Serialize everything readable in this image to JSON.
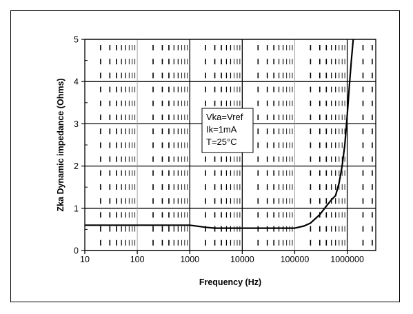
{
  "chart_data": {
    "type": "line",
    "xscale": "log",
    "xlabel": "Frequency (Hz)",
    "ylabel": "Zka Dynamic impedance (Ohms)",
    "xlim": [
      10,
      3500000
    ],
    "ylim": [
      0,
      5
    ],
    "xticks": [
      10,
      100,
      1000,
      10000,
      100000,
      1000000
    ],
    "xtick_labels": [
      "10",
      "100",
      "1000",
      "10000",
      "100000",
      "1000000"
    ],
    "yticks": [
      0,
      1,
      2,
      3,
      4,
      5
    ],
    "ytick_labels": [
      "0",
      "1",
      "2",
      "3",
      "4",
      "5"
    ],
    "grid": true,
    "annotation": [
      "Vka=Vref",
      "Ik=1mA",
      "T=25°C"
    ],
    "series": [
      {
        "x": [
          10,
          100,
          1000,
          2000,
          3000,
          10000,
          50000,
          100000,
          150000,
          200000,
          300000,
          400000,
          500000,
          600000,
          700000,
          800000,
          900000,
          1000000,
          1100000,
          1200000,
          1300000
        ],
        "y": [
          0.6,
          0.6,
          0.6,
          0.55,
          0.53,
          0.53,
          0.53,
          0.53,
          0.58,
          0.65,
          0.85,
          1.05,
          1.2,
          1.3,
          1.6,
          2.0,
          2.5,
          3.2,
          3.9,
          4.5,
          5.0
        ]
      }
    ]
  }
}
